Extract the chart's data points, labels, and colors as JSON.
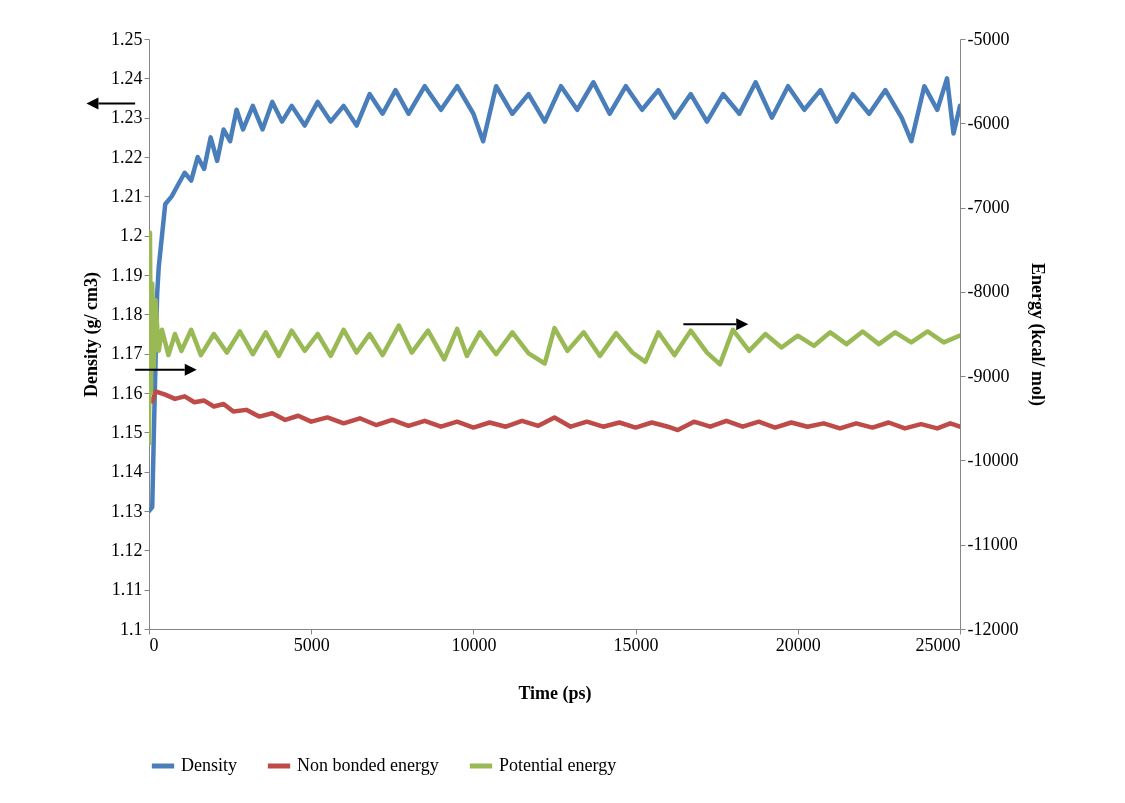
{
  "chart_data": {
    "type": "line",
    "xlabel": "Time (ps)",
    "ylabel": "Density (g/ cm3)",
    "y2label": "Energy (kcal/ mol)",
    "xlim": [
      0,
      25000
    ],
    "xticks": [
      0,
      5000,
      10000,
      15000,
      20000,
      25000
    ],
    "ylim": [
      1.1,
      1.25
    ],
    "yticks": [
      1.1,
      1.11,
      1.12,
      1.13,
      1.14,
      1.15,
      1.16,
      1.17,
      1.18,
      1.19,
      1.2,
      1.21,
      1.22,
      1.23,
      1.24,
      1.25
    ],
    "y2lim": [
      -12000,
      -5000
    ],
    "y2ticks": [
      -12000,
      -11000,
      -10000,
      -9000,
      -8000,
      -7000,
      -6000,
      -5000
    ],
    "grid": false,
    "legend": "bottom",
    "series": [
      {
        "name": "Density",
        "color": "#4a7ebb",
        "x": [
          0,
          100,
          150,
          250,
          300,
          400,
          500,
          700,
          900,
          1100,
          1300,
          1500,
          1700,
          1900,
          2100,
          2300,
          2500,
          2700,
          2900,
          3200,
          3500,
          3800,
          4100,
          4400,
          4800,
          5200,
          5600,
          6000,
          6400,
          6800,
          7200,
          7600,
          8000,
          8500,
          9000,
          9500,
          10000,
          10300,
          10700,
          11200,
          11700,
          12200,
          12700,
          13200,
          13700,
          14200,
          14700,
          15200,
          15700,
          16200,
          16700,
          17200,
          17700,
          18200,
          18700,
          19200,
          19700,
          20200,
          20700,
          21200,
          21700,
          22200,
          22700,
          23200,
          23500,
          23900,
          24300,
          24600,
          24800,
          25000
        ],
        "values": [
          1.13,
          1.131,
          1.15,
          1.185,
          1.192,
          1.2,
          1.208,
          1.21,
          1.213,
          1.216,
          1.214,
          1.22,
          1.217,
          1.225,
          1.219,
          1.227,
          1.224,
          1.232,
          1.227,
          1.233,
          1.227,
          1.234,
          1.229,
          1.233,
          1.228,
          1.234,
          1.229,
          1.233,
          1.228,
          1.236,
          1.231,
          1.237,
          1.231,
          1.238,
          1.232,
          1.238,
          1.231,
          1.224,
          1.238,
          1.231,
          1.236,
          1.229,
          1.238,
          1.232,
          1.239,
          1.231,
          1.238,
          1.232,
          1.237,
          1.23,
          1.236,
          1.229,
          1.236,
          1.231,
          1.239,
          1.23,
          1.238,
          1.232,
          1.237,
          1.229,
          1.236,
          1.231,
          1.237,
          1.23,
          1.224,
          1.238,
          1.232,
          1.24,
          1.226,
          1.233
        ]
      },
      {
        "name": "Non bonded energy",
        "color": "#be4b48",
        "axis": "y2",
        "x": [
          100,
          200,
          500,
          800,
          1100,
          1400,
          1700,
          2000,
          2300,
          2600,
          3000,
          3400,
          3800,
          4200,
          4600,
          5000,
          5500,
          6000,
          6500,
          7000,
          7500,
          8000,
          8500,
          9000,
          9500,
          10000,
          10500,
          11000,
          11500,
          12000,
          12500,
          13000,
          13500,
          14000,
          14500,
          15000,
          15500,
          16000,
          16300,
          16800,
          17300,
          17800,
          18300,
          18800,
          19300,
          19800,
          20300,
          20800,
          21300,
          21800,
          22300,
          22800,
          23300,
          23800,
          24300,
          24700,
          25000
        ],
        "values": [
          -9300,
          -9180,
          -9220,
          -9270,
          -9240,
          -9310,
          -9290,
          -9360,
          -9330,
          -9420,
          -9400,
          -9480,
          -9440,
          -9520,
          -9470,
          -9540,
          -9490,
          -9560,
          -9500,
          -9580,
          -9520,
          -9590,
          -9530,
          -9600,
          -9540,
          -9610,
          -9550,
          -9600,
          -9530,
          -9590,
          -9490,
          -9600,
          -9540,
          -9600,
          -9550,
          -9610,
          -9550,
          -9600,
          -9640,
          -9540,
          -9600,
          -9530,
          -9600,
          -9540,
          -9610,
          -9550,
          -9600,
          -9560,
          -9620,
          -9560,
          -9610,
          -9550,
          -9620,
          -9570,
          -9620,
          -9560,
          -9600
        ]
      },
      {
        "name": "Potential energy",
        "color": "#98b954",
        "axis": "y2",
        "x": [
          0,
          30,
          60,
          100,
          150,
          200,
          300,
          400,
          600,
          800,
          1000,
          1300,
          1600,
          2000,
          2400,
          2800,
          3200,
          3600,
          4000,
          4400,
          4800,
          5200,
          5600,
          6000,
          6400,
          6800,
          7200,
          7700,
          8100,
          8600,
          9100,
          9500,
          9800,
          10200,
          10700,
          11200,
          11700,
          12200,
          12500,
          12900,
          13400,
          13900,
          14400,
          14900,
          15300,
          15700,
          16200,
          16700,
          17200,
          17600,
          18000,
          18500,
          19000,
          19500,
          20000,
          20500,
          21000,
          21500,
          22000,
          22500,
          23000,
          23500,
          24000,
          24500,
          25000
        ],
        "values": [
          -9800,
          -7300,
          -9200,
          -7900,
          -8900,
          -8100,
          -8700,
          -8450,
          -8750,
          -8500,
          -8700,
          -8450,
          -8750,
          -8500,
          -8720,
          -8470,
          -8740,
          -8480,
          -8760,
          -8460,
          -8700,
          -8500,
          -8760,
          -8450,
          -8720,
          -8500,
          -8750,
          -8400,
          -8720,
          -8460,
          -8800,
          -8440,
          -8760,
          -8480,
          -8740,
          -8480,
          -8730,
          -8850,
          -8430,
          -8700,
          -8480,
          -8760,
          -8490,
          -8720,
          -8830,
          -8480,
          -8750,
          -8460,
          -8720,
          -8860,
          -8450,
          -8700,
          -8500,
          -8660,
          -8520,
          -8640,
          -8480,
          -8620,
          -8470,
          -8620,
          -8480,
          -8600,
          -8470,
          -8600,
          -8520
        ]
      }
    ]
  }
}
